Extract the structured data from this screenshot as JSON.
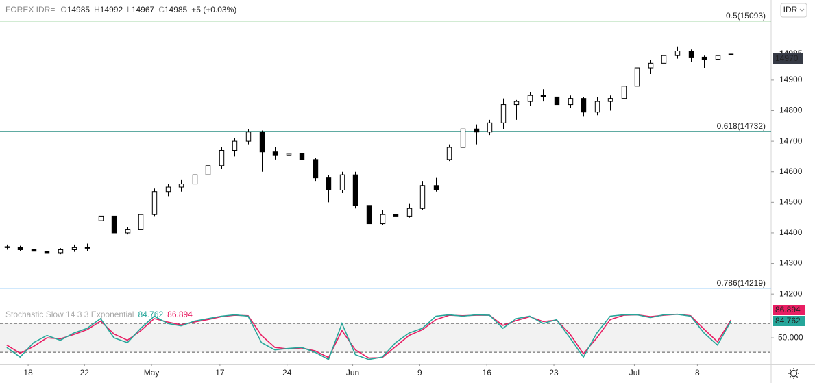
{
  "chart_data": [
    {
      "type": "candlestick",
      "title": "FOREX IDR=",
      "ohlc_labels": [
        {
          "name": "O",
          "value": 14985
        },
        {
          "name": "H",
          "value": 14992
        },
        {
          "name": "L",
          "value": 14967
        },
        {
          "name": "C",
          "value": 14985
        }
      ],
      "change": "+5 (+0.03%)",
      "currency_button": "IDR",
      "x": [
        0,
        1,
        2,
        3,
        4,
        5,
        6,
        7,
        8,
        9,
        10,
        11,
        12,
        13,
        14,
        15,
        16,
        17,
        18,
        19,
        20,
        21,
        22,
        23,
        24,
        25,
        26,
        27,
        28,
        29,
        30,
        31,
        32,
        33,
        34,
        35,
        36,
        37,
        38,
        39,
        40,
        41,
        42,
        43,
        44,
        45,
        46,
        47,
        48,
        49,
        50,
        51,
        52,
        53,
        54
      ],
      "open": [
        14355,
        14352,
        14345,
        14340,
        14335,
        14345,
        14352,
        14440,
        14455,
        14400,
        14412,
        14460,
        14535,
        14550,
        14560,
        14590,
        14620,
        14670,
        14700,
        14730,
        14665,
        14655,
        14660,
        14640,
        14580,
        14540,
        14590,
        14490,
        14430,
        14460,
        14455,
        14480,
        14555,
        14640,
        14680,
        14740,
        14730,
        14760,
        14820,
        14830,
        14850,
        14845,
        14820,
        14840,
        14795,
        14830,
        14840,
        14880,
        14940,
        14955,
        14980,
        14995,
        14975,
        14968,
        14985
      ],
      "high": [
        14362,
        14358,
        14352,
        14348,
        14350,
        14362,
        14365,
        14470,
        14462,
        14420,
        14470,
        14545,
        14560,
        14575,
        14600,
        14630,
        14680,
        14710,
        14740,
        14735,
        14680,
        14672,
        14668,
        14645,
        14590,
        14600,
        14600,
        14495,
        14475,
        14470,
        14495,
        14570,
        14580,
        14690,
        14760,
        14755,
        14770,
        14840,
        14835,
        14860,
        14870,
        14850,
        14850,
        14845,
        14845,
        14850,
        14900,
        14960,
        14965,
        14990,
        15010,
        15000,
        14980,
        14985,
        14992
      ],
      "low": [
        14345,
        14340,
        14335,
        14322,
        14330,
        14338,
        14340,
        14425,
        14390,
        14395,
        14405,
        14455,
        14520,
        14535,
        14550,
        14580,
        14610,
        14650,
        14690,
        14600,
        14640,
        14640,
        14630,
        14570,
        14500,
        14530,
        14480,
        14415,
        14425,
        14445,
        14450,
        14475,
        14535,
        14635,
        14670,
        14690,
        14720,
        14740,
        14770,
        14815,
        14830,
        14805,
        14810,
        14780,
        14785,
        14800,
        14830,
        14860,
        14920,
        14945,
        14970,
        14960,
        14940,
        14945,
        14967
      ],
      "close": [
        14352,
        14345,
        14340,
        14335,
        14345,
        14352,
        14350,
        14455,
        14400,
        14412,
        14460,
        14535,
        14550,
        14560,
        14590,
        14620,
        14670,
        14700,
        14730,
        14665,
        14655,
        14660,
        14640,
        14580,
        14540,
        14590,
        14490,
        14430,
        14460,
        14455,
        14480,
        14555,
        14540,
        14680,
        14740,
        14730,
        14760,
        14820,
        14830,
        14850,
        14845,
        14820,
        14840,
        14795,
        14830,
        14840,
        14880,
        14940,
        14955,
        14980,
        14995,
        14975,
        14968,
        14980,
        14985
      ],
      "up_color": "#ffffff",
      "down_color": "#000000",
      "border_color": "#000000",
      "xlim": [
        -0.5,
        57
      ],
      "ylim": [
        14169,
        15162
      ],
      "yticks": [
        14200,
        14300,
        14400,
        14500,
        14600,
        14700,
        14800,
        14900
      ],
      "last_price": 14985,
      "marker_price": 14970,
      "levels": [
        {
          "label": "0.5(15093)",
          "value": 15093,
          "color": "#4caf50"
        },
        {
          "label": "0.618(14732)",
          "value": 14732,
          "color": "#00796b"
        },
        {
          "label": "0.786(14219)",
          "value": 14219,
          "color": "#42a5f5"
        }
      ]
    },
    {
      "type": "line",
      "title": "Stochastic Slow 14 3 3 Exponential",
      "x": [
        0,
        1,
        2,
        3,
        4,
        5,
        6,
        7,
        8,
        9,
        10,
        11,
        12,
        13,
        14,
        15,
        16,
        17,
        18,
        19,
        20,
        21,
        22,
        23,
        24,
        25,
        26,
        27,
        28,
        29,
        30,
        31,
        32,
        33,
        34,
        35,
        36,
        37,
        38,
        39,
        40,
        41,
        42,
        43,
        44,
        45,
        46,
        47,
        48,
        49,
        50,
        51,
        52,
        53,
        54
      ],
      "series": [
        {
          "name": "%K",
          "color": "#26a69a",
          "values": [
            30,
            10,
            40,
            55,
            45,
            60,
            70,
            90,
            50,
            40,
            70,
            95,
            80,
            75,
            85,
            90,
            95,
            98,
            95,
            40,
            25,
            28,
            30,
            20,
            5,
            80,
            15,
            5,
            10,
            40,
            60,
            70,
            95,
            98,
            95,
            98,
            97,
            70,
            90,
            95,
            80,
            88,
            50,
            10,
            60,
            95,
            98,
            98,
            92,
            98,
            99,
            95,
            60,
            35,
            84.762
          ]
        },
        {
          "name": "%D",
          "color": "#e91e63",
          "values": [
            35,
            18,
            32,
            50,
            48,
            57,
            67,
            85,
            58,
            45,
            65,
            90,
            83,
            77,
            83,
            88,
            94,
            97,
            96,
            55,
            30,
            27,
            29,
            23,
            9,
            65,
            25,
            8,
            9,
            32,
            55,
            67,
            88,
            97,
            96,
            97,
            97,
            76,
            86,
            94,
            84,
            87,
            58,
            17,
            50,
            88,
            97,
            98,
            94,
            97,
            99,
            96,
            68,
            42,
            86.894
          ]
        }
      ],
      "levels": [
        20,
        80
      ],
      "xlim": [
        -0.5,
        57
      ],
      "ylim": [
        -4,
        120
      ],
      "yticks": [
        {
          "value": 50,
          "label": "50.000"
        }
      ],
      "xticks": [
        {
          "value": 1.6,
          "label": "18"
        },
        {
          "value": 5.8,
          "label": "22"
        },
        {
          "value": 10.8,
          "label": "May"
        },
        {
          "value": 15.9,
          "label": "17"
        },
        {
          "value": 20.9,
          "label": "24"
        },
        {
          "value": 25.8,
          "label": "Jun"
        },
        {
          "value": 30.8,
          "label": "9"
        },
        {
          "value": 35.8,
          "label": "16"
        },
        {
          "value": 40.8,
          "label": "23"
        },
        {
          "value": 46.8,
          "label": "Jul"
        },
        {
          "value": 51.5,
          "label": "8"
        }
      ]
    }
  ]
}
